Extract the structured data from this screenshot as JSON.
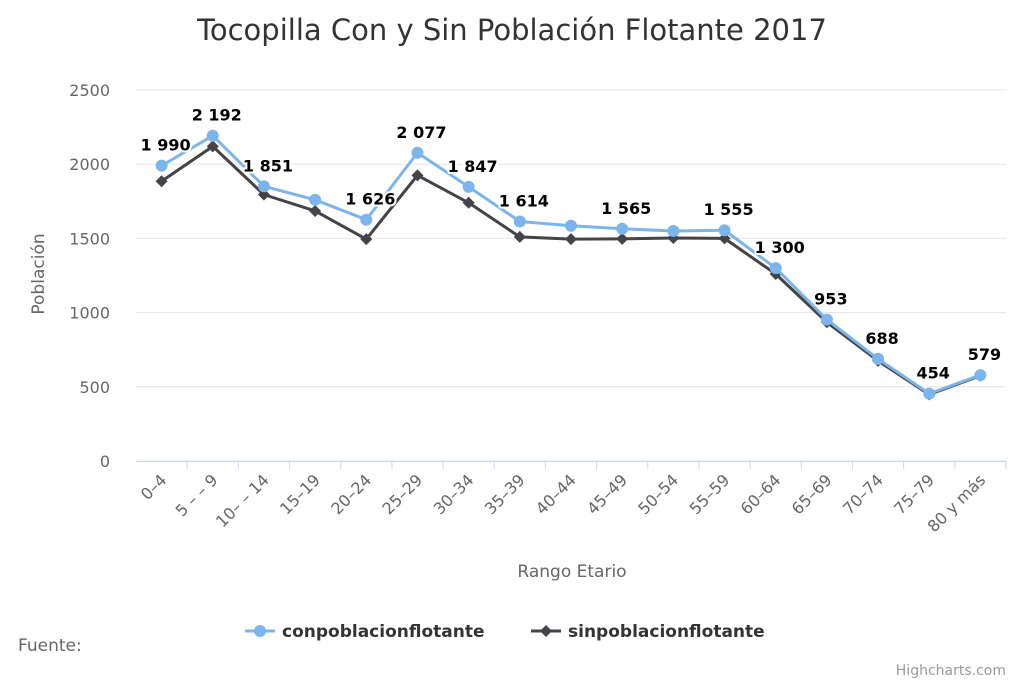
{
  "chart_data": {
    "type": "line",
    "title": "Tocopilla Con y Sin Población Flotante 2017",
    "xlabel": "Rango Etario",
    "ylabel": "Población",
    "categories": [
      "0–4",
      "5 – – 9",
      "10– – 14",
      "15–19",
      "20–24",
      "25–29",
      "30–34",
      "35–39",
      "40–44",
      "45–49",
      "50–54",
      "55–59",
      "60–64",
      "65–69",
      "70–74",
      "75–79",
      "80 y más"
    ],
    "ylim": [
      0,
      2500
    ],
    "yticks": [
      0,
      500,
      1000,
      1500,
      2000,
      2500
    ],
    "grid": true,
    "legend_position": "bottom-center",
    "series": [
      {
        "name": "conpoblacionflotante",
        "color": "#7cb5ec",
        "marker": "circle",
        "values": [
          1990,
          2192,
          1851,
          1760,
          1626,
          2077,
          1847,
          1614,
          1585,
          1565,
          1550,
          1555,
          1300,
          953,
          688,
          454,
          579
        ],
        "data_labels": [
          "1 990",
          "2 192",
          "1 851",
          "",
          "1 626",
          "2 077",
          "1 847",
          "1 614",
          "",
          "1 565",
          "",
          "1 555",
          "1 300",
          "953",
          "688",
          "454",
          "579"
        ]
      },
      {
        "name": "sinpoblacionflotante",
        "color": "#434348",
        "marker": "diamond",
        "values": [
          1885,
          2120,
          1795,
          1685,
          1495,
          1925,
          1740,
          1510,
          1495,
          1497,
          1503,
          1500,
          1260,
          935,
          675,
          448,
          575
        ]
      }
    ]
  },
  "footer": {
    "source_label": "Fuente:",
    "credits": "Highcharts.com"
  }
}
